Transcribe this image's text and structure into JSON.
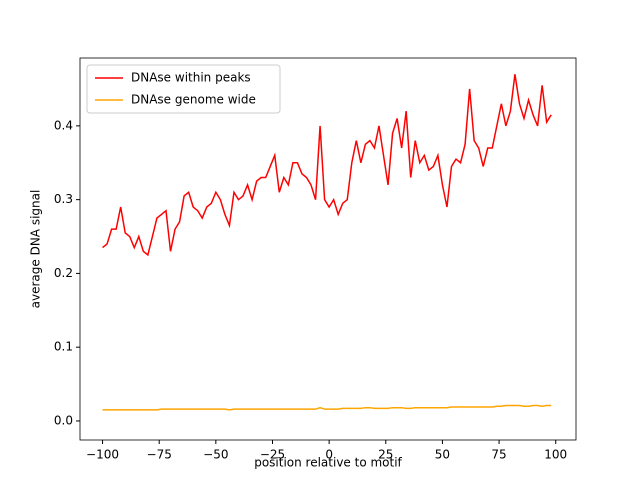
{
  "chart_data": {
    "type": "line",
    "xlabel": "position relative to motif",
    "ylabel": "average DNA signal",
    "x": [
      -100,
      -98,
      -96,
      -94,
      -92,
      -90,
      -88,
      -86,
      -84,
      -82,
      -80,
      -78,
      -76,
      -74,
      -72,
      -70,
      -68,
      -66,
      -64,
      -62,
      -60,
      -58,
      -56,
      -54,
      -52,
      -50,
      -48,
      -46,
      -44,
      -42,
      -40,
      -38,
      -36,
      -34,
      -32,
      -30,
      -28,
      -26,
      -24,
      -22,
      -20,
      -18,
      -16,
      -14,
      -12,
      -10,
      -8,
      -6,
      -4,
      -2,
      0,
      2,
      4,
      6,
      8,
      10,
      12,
      14,
      16,
      18,
      20,
      22,
      24,
      26,
      28,
      30,
      32,
      34,
      36,
      38,
      40,
      42,
      44,
      46,
      48,
      50,
      52,
      54,
      56,
      58,
      60,
      62,
      64,
      66,
      68,
      70,
      72,
      74,
      76,
      78,
      80,
      82,
      84,
      86,
      88,
      90,
      92,
      94,
      96,
      98
    ],
    "series": [
      {
        "name": "DNAse within peaks",
        "color": "#ff0000",
        "values": [
          0.235,
          0.24,
          0.26,
          0.26,
          0.29,
          0.255,
          0.25,
          0.235,
          0.25,
          0.23,
          0.225,
          0.25,
          0.275,
          0.28,
          0.285,
          0.23,
          0.26,
          0.27,
          0.305,
          0.31,
          0.29,
          0.285,
          0.275,
          0.29,
          0.295,
          0.31,
          0.3,
          0.28,
          0.265,
          0.31,
          0.3,
          0.305,
          0.32,
          0.3,
          0.325,
          0.33,
          0.33,
          0.345,
          0.36,
          0.31,
          0.33,
          0.32,
          0.35,
          0.35,
          0.335,
          0.33,
          0.32,
          0.3,
          0.4,
          0.3,
          0.29,
          0.3,
          0.28,
          0.295,
          0.3,
          0.35,
          0.38,
          0.35,
          0.375,
          0.38,
          0.37,
          0.4,
          0.36,
          0.32,
          0.39,
          0.41,
          0.37,
          0.42,
          0.33,
          0.38,
          0.35,
          0.36,
          0.34,
          0.345,
          0.36,
          0.32,
          0.29,
          0.345,
          0.355,
          0.35,
          0.375,
          0.45,
          0.38,
          0.37,
          0.345,
          0.37,
          0.37,
          0.4,
          0.43,
          0.4,
          0.42,
          0.47,
          0.43,
          0.41,
          0.435,
          0.415,
          0.4,
          0.455,
          0.405,
          0.415
        ]
      },
      {
        "name": "DNAse genome wide",
        "color": "#ffa500",
        "values": [
          0.015,
          0.015,
          0.015,
          0.015,
          0.015,
          0.015,
          0.015,
          0.015,
          0.015,
          0.015,
          0.015,
          0.015,
          0.015,
          0.016,
          0.016,
          0.016,
          0.016,
          0.016,
          0.016,
          0.016,
          0.016,
          0.016,
          0.016,
          0.016,
          0.016,
          0.016,
          0.016,
          0.016,
          0.015,
          0.016,
          0.016,
          0.016,
          0.016,
          0.016,
          0.016,
          0.016,
          0.016,
          0.016,
          0.016,
          0.016,
          0.016,
          0.016,
          0.016,
          0.016,
          0.016,
          0.016,
          0.016,
          0.016,
          0.018,
          0.016,
          0.016,
          0.016,
          0.016,
          0.017,
          0.017,
          0.017,
          0.017,
          0.017,
          0.018,
          0.018,
          0.017,
          0.017,
          0.017,
          0.017,
          0.018,
          0.018,
          0.018,
          0.017,
          0.017,
          0.018,
          0.018,
          0.018,
          0.018,
          0.018,
          0.018,
          0.018,
          0.018,
          0.019,
          0.019,
          0.019,
          0.019,
          0.019,
          0.019,
          0.019,
          0.019,
          0.019,
          0.019,
          0.02,
          0.02,
          0.021,
          0.021,
          0.021,
          0.021,
          0.02,
          0.02,
          0.021,
          0.021,
          0.02,
          0.021,
          0.021
        ]
      }
    ],
    "xlim": [
      -109.95,
      108.95
    ],
    "xticks": [
      {
        "value": -100,
        "label": "−100"
      },
      {
        "value": -75,
        "label": "−75"
      },
      {
        "value": -50,
        "label": "−50"
      },
      {
        "value": -25,
        "label": "−25"
      },
      0,
      25,
      50,
      75,
      100
    ],
    "ylim": [
      -0.0258,
      0.492
    ],
    "yticks": [
      {
        "value": 0,
        "label": "0.0"
      },
      0.1,
      0.2,
      0.3,
      0.4
    ],
    "legend": "upper left"
  }
}
